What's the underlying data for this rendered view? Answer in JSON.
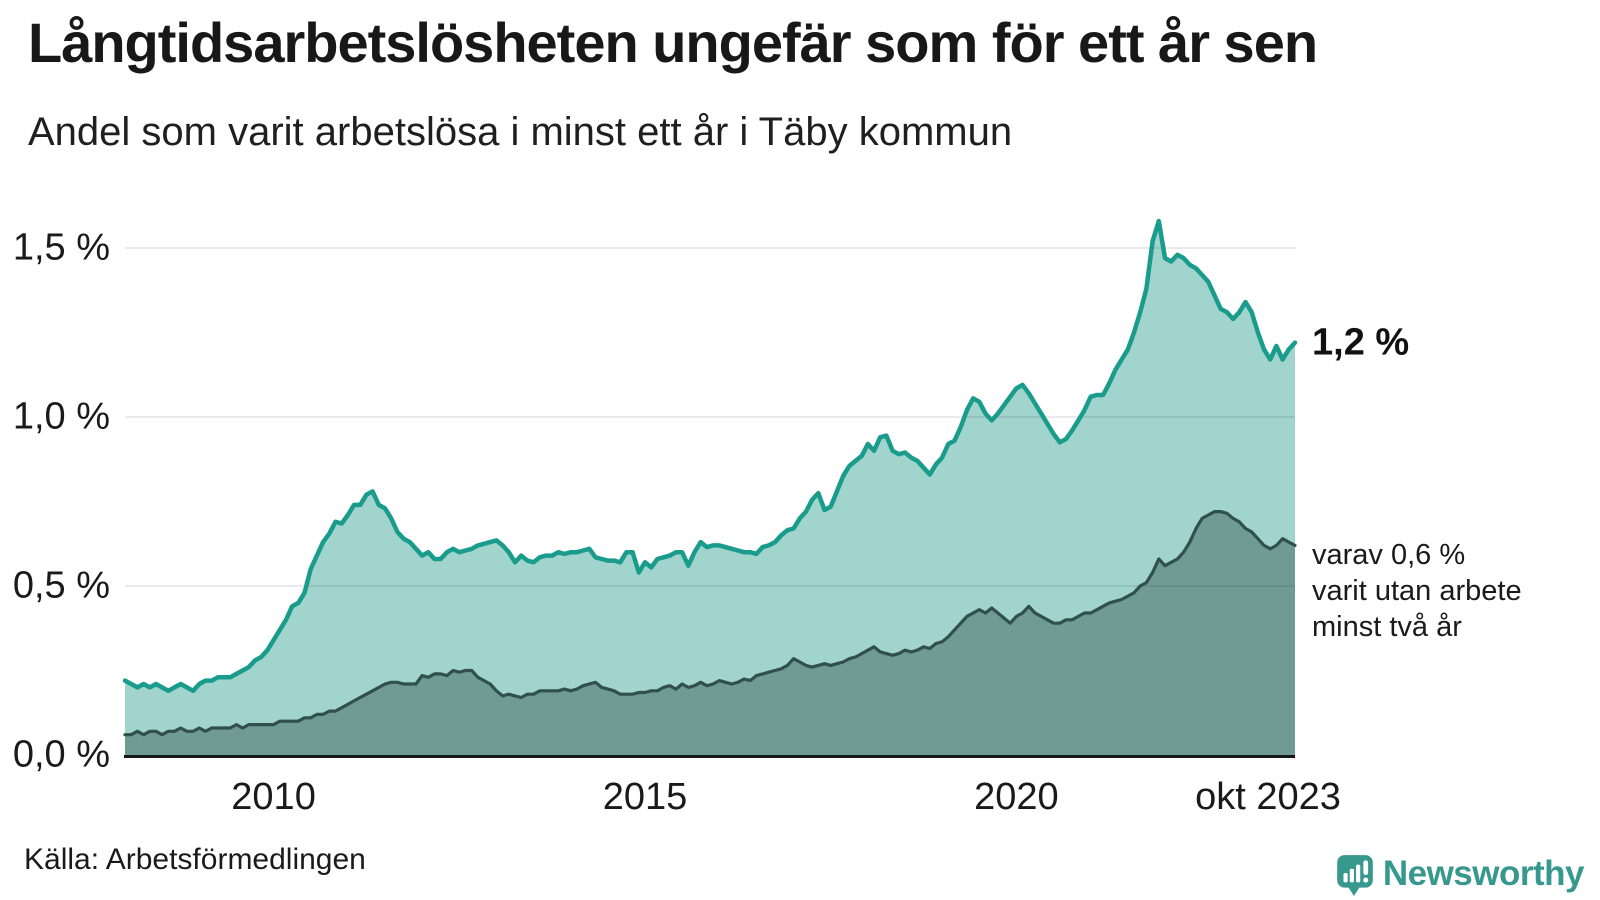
{
  "header": {
    "title": "Långtidsarbetslösheten ungefär som för ett år sen",
    "subtitle": "Andel som varit arbetslösa i minst ett år i Täby kommun"
  },
  "annotations": {
    "series1_end_label": "1,2 %",
    "series2_note": "varav 0,6 %\nvarit utan arbete\nminst två år"
  },
  "footer": {
    "source": "Källa: Arbetsförmedlingen",
    "brand_name": "Newsworthy"
  },
  "colors": {
    "series1_line": "#1a9c8c",
    "series1_fill": "#a0d4cd",
    "series2_line": "#31504b",
    "series2_fill": "#6f9b94",
    "axis": "#16161a",
    "grid": "#111111",
    "grid_opacity": 0.09,
    "text": "#1a1a1a",
    "brand": "#37988e"
  },
  "chart_data": {
    "type": "area",
    "title": "Långtidsarbetslösheten ungefär som för ett år sen",
    "subtitle": "Andel som varit arbetslösa i minst ett år i Täby kommun",
    "unit": "%",
    "frequency": "monthly",
    "start_month": "2008-01",
    "end_month": "2023-10",
    "ylim": [
      0,
      1.65
    ],
    "grid": true,
    "legend": "none",
    "y_ticks": [
      {
        "label": "0,0 %",
        "value": 0
      },
      {
        "label": "0,5 %",
        "value": 0.5
      },
      {
        "label": "1,0 %",
        "value": 1.0
      },
      {
        "label": "1,5 %",
        "value": 1.5
      }
    ],
    "x_ticks": [
      {
        "label": "2010",
        "month": "2010-01"
      },
      {
        "label": "2015",
        "month": "2015-01"
      },
      {
        "label": "2020",
        "month": "2020-01"
      },
      {
        "label": "okt 2023",
        "month": "2023-10"
      }
    ],
    "series": [
      {
        "name": "Andel som varit arbetslösa i minst ett år",
        "end_value_label": "1,2 %",
        "values": [
          0.22,
          0.21,
          0.2,
          0.21,
          0.2,
          0.21,
          0.2,
          0.19,
          0.2,
          0.21,
          0.2,
          0.19,
          0.21,
          0.22,
          0.22,
          0.23,
          0.23,
          0.23,
          0.24,
          0.25,
          0.26,
          0.28,
          0.29,
          0.31,
          0.34,
          0.37,
          0.4,
          0.44,
          0.45,
          0.48,
          0.55,
          0.59,
          0.63,
          0.655,
          0.69,
          0.685,
          0.71,
          0.74,
          0.74,
          0.77,
          0.78,
          0.74,
          0.73,
          0.7,
          0.66,
          0.64,
          0.63,
          0.61,
          0.59,
          0.6,
          0.58,
          0.58,
          0.6,
          0.61,
          0.6,
          0.605,
          0.61,
          0.62,
          0.625,
          0.63,
          0.635,
          0.62,
          0.6,
          0.57,
          0.59,
          0.575,
          0.57,
          0.585,
          0.59,
          0.59,
          0.6,
          0.595,
          0.6,
          0.6,
          0.605,
          0.61,
          0.585,
          0.58,
          0.575,
          0.575,
          0.57,
          0.6,
          0.6,
          0.54,
          0.57,
          0.555,
          0.58,
          0.585,
          0.59,
          0.6,
          0.6,
          0.56,
          0.6,
          0.63,
          0.615,
          0.62,
          0.62,
          0.615,
          0.61,
          0.605,
          0.6,
          0.6,
          0.595,
          0.615,
          0.62,
          0.63,
          0.65,
          0.665,
          0.67,
          0.7,
          0.72,
          0.755,
          0.775,
          0.725,
          0.735,
          0.78,
          0.825,
          0.855,
          0.87,
          0.885,
          0.92,
          0.9,
          0.94,
          0.945,
          0.9,
          0.89,
          0.895,
          0.88,
          0.87,
          0.85,
          0.83,
          0.86,
          0.88,
          0.92,
          0.93,
          0.97,
          1.02,
          1.055,
          1.045,
          1.01,
          0.99,
          1.01,
          1.035,
          1.06,
          1.085,
          1.095,
          1.07,
          1.04,
          1.01,
          0.98,
          0.95,
          0.925,
          0.935,
          0.96,
          0.99,
          1.02,
          1.06,
          1.065,
          1.065,
          1.1,
          1.14,
          1.17,
          1.2,
          1.25,
          1.31,
          1.38,
          1.52,
          1.58,
          1.47,
          1.46,
          1.48,
          1.47,
          1.45,
          1.44,
          1.42,
          1.4,
          1.36,
          1.32,
          1.31,
          1.29,
          1.31,
          1.34,
          1.31,
          1.25,
          1.2,
          1.17,
          1.21,
          1.17,
          1.2,
          1.22
        ]
      },
      {
        "name": "varav varit utan arbete minst två år",
        "end_value_label": "0,6 %",
        "values": [
          0.06,
          0.06,
          0.07,
          0.06,
          0.07,
          0.07,
          0.06,
          0.07,
          0.07,
          0.08,
          0.07,
          0.07,
          0.08,
          0.07,
          0.08,
          0.08,
          0.08,
          0.08,
          0.09,
          0.08,
          0.09,
          0.09,
          0.09,
          0.09,
          0.09,
          0.1,
          0.1,
          0.1,
          0.1,
          0.11,
          0.11,
          0.12,
          0.12,
          0.13,
          0.13,
          0.14,
          0.15,
          0.16,
          0.17,
          0.18,
          0.19,
          0.2,
          0.21,
          0.215,
          0.215,
          0.21,
          0.21,
          0.21,
          0.235,
          0.23,
          0.24,
          0.24,
          0.235,
          0.25,
          0.245,
          0.25,
          0.25,
          0.23,
          0.22,
          0.21,
          0.19,
          0.175,
          0.18,
          0.175,
          0.17,
          0.18,
          0.18,
          0.19,
          0.19,
          0.19,
          0.19,
          0.195,
          0.19,
          0.195,
          0.205,
          0.21,
          0.215,
          0.2,
          0.195,
          0.19,
          0.18,
          0.18,
          0.18,
          0.185,
          0.185,
          0.19,
          0.19,
          0.2,
          0.205,
          0.195,
          0.21,
          0.2,
          0.205,
          0.215,
          0.205,
          0.21,
          0.22,
          0.215,
          0.21,
          0.215,
          0.225,
          0.22,
          0.235,
          0.24,
          0.245,
          0.25,
          0.255,
          0.265,
          0.285,
          0.275,
          0.265,
          0.26,
          0.265,
          0.27,
          0.265,
          0.27,
          0.275,
          0.285,
          0.29,
          0.3,
          0.31,
          0.32,
          0.305,
          0.3,
          0.295,
          0.3,
          0.31,
          0.305,
          0.31,
          0.32,
          0.315,
          0.33,
          0.335,
          0.35,
          0.37,
          0.39,
          0.41,
          0.42,
          0.43,
          0.42,
          0.435,
          0.42,
          0.405,
          0.39,
          0.41,
          0.42,
          0.44,
          0.42,
          0.41,
          0.4,
          0.39,
          0.39,
          0.4,
          0.4,
          0.41,
          0.42,
          0.42,
          0.43,
          0.44,
          0.45,
          0.455,
          0.46,
          0.47,
          0.48,
          0.5,
          0.51,
          0.54,
          0.58,
          0.56,
          0.57,
          0.58,
          0.6,
          0.63,
          0.67,
          0.7,
          0.71,
          0.72,
          0.72,
          0.715,
          0.7,
          0.69,
          0.67,
          0.66,
          0.64,
          0.62,
          0.61,
          0.62,
          0.64,
          0.63,
          0.62
        ]
      }
    ]
  }
}
